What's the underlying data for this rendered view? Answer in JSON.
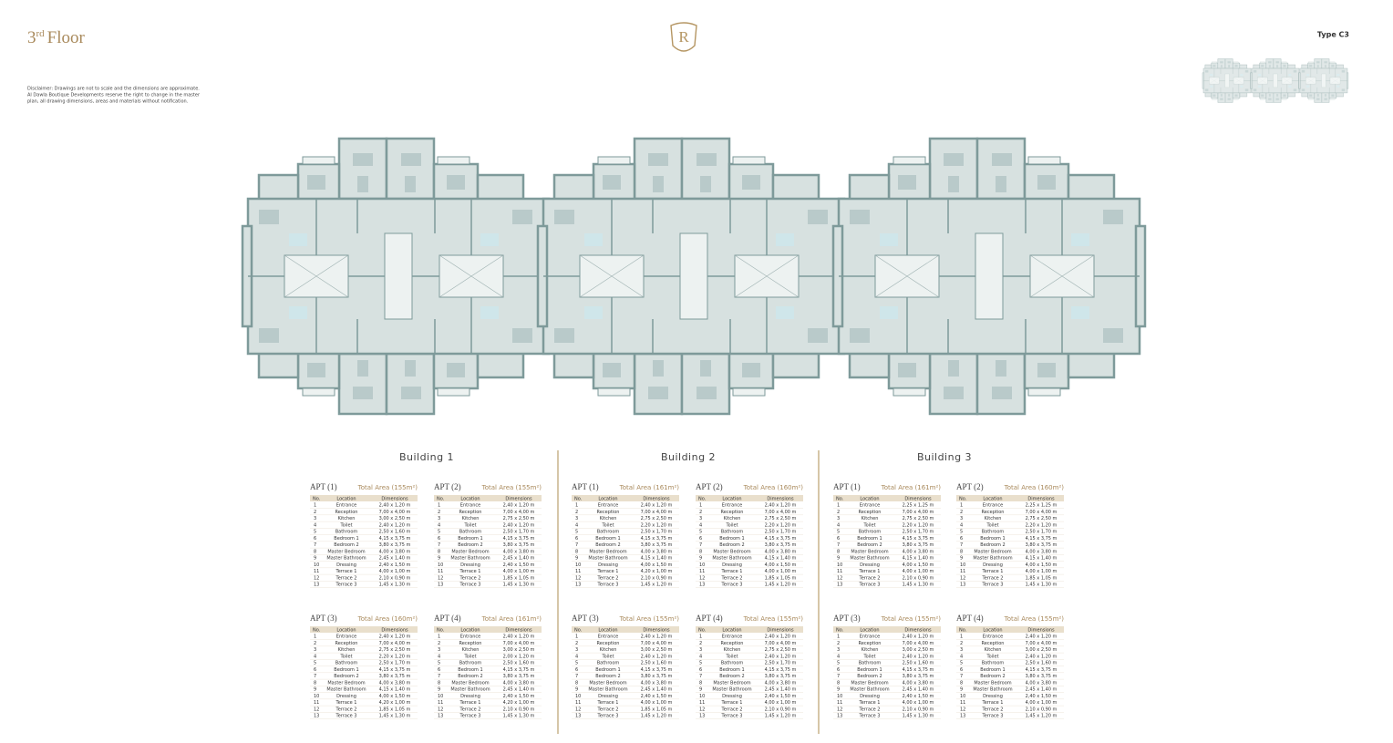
{
  "header": {
    "title_number": "3",
    "title_suffix": "rd",
    "title_word": "Floor",
    "logo": "R",
    "type": "Type C3",
    "disclaimer": [
      "Disclaimer: Drawings are not to scale and the dimensions are approximate.",
      "Al Dawla Boutique Developments reserve the right to change in the master",
      "plan, all drawing dimensions, areas and materials without notification."
    ]
  },
  "table_columns": [
    "No.",
    "Location",
    "Dimensions"
  ],
  "buildings": [
    {
      "title": "Building 1",
      "apartments": [
        {
          "label": "APT (1)",
          "area": "Total Area (155m²)",
          "rows": [
            [
              "1",
              "Entrance",
              "2,40 x 1,20 m"
            ],
            [
              "2",
              "Reception",
              "7,00 x 4,00 m"
            ],
            [
              "3",
              "Kitchen",
              "3,00 x 2,50 m"
            ],
            [
              "4",
              "Toilet",
              "2,40 x 1,20 m"
            ],
            [
              "5",
              "Bathroom",
              "2,50 x 1,60 m"
            ],
            [
              "6",
              "Bedroom 1",
              "4,15 x 3,75 m"
            ],
            [
              "7",
              "Bedroom 2",
              "3,80 x 3,75 m"
            ],
            [
              "8",
              "Master Bedroom",
              "4,00 x 3,80 m"
            ],
            [
              "9",
              "Master Bathroom",
              "2,45 x 1,40 m"
            ],
            [
              "10",
              "Dressing",
              "2,40 x 1,50 m"
            ],
            [
              "11",
              "Terrace 1",
              "4,00 x 1,00 m"
            ],
            [
              "12",
              "Terrace 2",
              "2,10 x 0,90 m"
            ],
            [
              "13",
              "Terrace 3",
              "1,45 x 1,30 m"
            ]
          ]
        },
        {
          "label": "APT (2)",
          "area": "Total Area (155m²)",
          "rows": [
            [
              "1",
              "Entrance",
              "2,40 x 1,20 m"
            ],
            [
              "2",
              "Reception",
              "7,00 x 4,00 m"
            ],
            [
              "3",
              "Kitchen",
              "2,75 x 2,50 m"
            ],
            [
              "4",
              "Toilet",
              "2,40 x 1,20 m"
            ],
            [
              "5",
              "Bathroom",
              "2,50 x 1,70 m"
            ],
            [
              "6",
              "Bedroom 1",
              "4,15 x 3,75 m"
            ],
            [
              "7",
              "Bedroom 2",
              "3,80 x 3,75 m"
            ],
            [
              "8",
              "Master Bedroom",
              "4,00 x 3,80 m"
            ],
            [
              "9",
              "Master Bathroom",
              "2,45 x 1,40 m"
            ],
            [
              "10",
              "Dressing",
              "2,40 x 1,50 m"
            ],
            [
              "11",
              "Terrace 1",
              "4,00 x 1,00 m"
            ],
            [
              "12",
              "Terrace 2",
              "1,85 x 1,05 m"
            ],
            [
              "13",
              "Terrace 3",
              "1,45 x 1,30 m"
            ]
          ]
        },
        {
          "label": "APT (3)",
          "area": "Total Area (160m²)",
          "rows": [
            [
              "1",
              "Entrance",
              "2,40 x 1,20 m"
            ],
            [
              "2",
              "Reception",
              "7,00 x 4,00 m"
            ],
            [
              "3",
              "Kitchen",
              "2,75 x 2,50 m"
            ],
            [
              "4",
              "Toilet",
              "2,20 x 1,20 m"
            ],
            [
              "5",
              "Bathroom",
              "2,50 x 1,70 m"
            ],
            [
              "6",
              "Bedroom 1",
              "4,15 x 3,75 m"
            ],
            [
              "7",
              "Bedroom 2",
              "3,80 x 3,75 m"
            ],
            [
              "8",
              "Master Bedroom",
              "4,00 x 3,80 m"
            ],
            [
              "9",
              "Master Bathroom",
              "4,15 x 1,40 m"
            ],
            [
              "10",
              "Dressing",
              "4,00 x 1,50 m"
            ],
            [
              "11",
              "Terrace 1",
              "4,20 x 1,00 m"
            ],
            [
              "12",
              "Terrace 2",
              "1,85 x 1,05 m"
            ],
            [
              "13",
              "Terrace 3",
              "1,45 x 1,30 m"
            ]
          ]
        },
        {
          "label": "APT (4)",
          "area": "Total Area (161m²)",
          "rows": [
            [
              "1",
              "Entrance",
              "2,40 x 1,20 m"
            ],
            [
              "2",
              "Reception",
              "7,00 x 4,00 m"
            ],
            [
              "3",
              "Kitchen",
              "3,00 x 2,50 m"
            ],
            [
              "4",
              "Toilet",
              "2,00 x 1,20 m"
            ],
            [
              "5",
              "Bathroom",
              "2,50 x 1,60 m"
            ],
            [
              "6",
              "Bedroom 1",
              "4,15 x 3,75 m"
            ],
            [
              "7",
              "Bedroom 2",
              "3,80 x 3,75 m"
            ],
            [
              "8",
              "Master Bedroom",
              "4,00 x 3,80 m"
            ],
            [
              "9",
              "Master Bathroom",
              "2,45 x 1,40 m"
            ],
            [
              "10",
              "Dressing",
              "2,40 x 1,50 m"
            ],
            [
              "11",
              "Terrace 1",
              "4,20 x 1,00 m"
            ],
            [
              "12",
              "Terrace 2",
              "2,10 x 0,90 m"
            ],
            [
              "13",
              "Terrace 3",
              "1,45 x 1,30 m"
            ]
          ]
        }
      ]
    },
    {
      "title": "Building 2",
      "apartments": [
        {
          "label": "APT (1)",
          "area": "Total Area (161m²)",
          "rows": [
            [
              "1",
              "Entrance",
              "2,40 x 1,20 m"
            ],
            [
              "2",
              "Reception",
              "7,00 x 4,00 m"
            ],
            [
              "3",
              "Kitchen",
              "2,75 x 2,50 m"
            ],
            [
              "4",
              "Toilet",
              "2,20 x 1,20 m"
            ],
            [
              "5",
              "Bathroom",
              "2,50 x 1,70 m"
            ],
            [
              "6",
              "Bedroom 1",
              "4,15 x 3,75 m"
            ],
            [
              "7",
              "Bedroom 2",
              "3,80 x 3,75 m"
            ],
            [
              "8",
              "Master Bedroom",
              "4,00 x 3,80 m"
            ],
            [
              "9",
              "Master Bathroom",
              "4,15 x 1,40 m"
            ],
            [
              "10",
              "Dressing",
              "4,00 x 1,50 m"
            ],
            [
              "11",
              "Terrace 1",
              "4,20 x 1,00 m"
            ],
            [
              "12",
              "Terrace 2",
              "2,10 x 0,90 m"
            ],
            [
              "13",
              "Terrace 3",
              "1,45 x 1,20 m"
            ]
          ]
        },
        {
          "label": "APT (2)",
          "area": "Total Area (160m²)",
          "rows": [
            [
              "1",
              "Entrance",
              "2,40 x 1,20 m"
            ],
            [
              "2",
              "Reception",
              "7,00 x 4,00 m"
            ],
            [
              "3",
              "Kitchen",
              "2,75 x 2,50 m"
            ],
            [
              "4",
              "Toilet",
              "2,20 x 1,20 m"
            ],
            [
              "5",
              "Bathroom",
              "2,50 x 1,70 m"
            ],
            [
              "6",
              "Bedroom 1",
              "4,15 x 3,75 m"
            ],
            [
              "7",
              "Bedroom 2",
              "3,80 x 3,75 m"
            ],
            [
              "8",
              "Master Bedroom",
              "4,00 x 3,80 m"
            ],
            [
              "9",
              "Master Bathroom",
              "4,15 x 1,40 m"
            ],
            [
              "10",
              "Dressing",
              "4,00 x 1,50 m"
            ],
            [
              "11",
              "Terrace 1",
              "4,00 x 1,00 m"
            ],
            [
              "12",
              "Terrace 2",
              "1,85 x 1,05 m"
            ],
            [
              "13",
              "Terrace 3",
              "1,45 x 1,20 m"
            ]
          ]
        },
        {
          "label": "APT (3)",
          "area": "Total Area (155m²)",
          "rows": [
            [
              "1",
              "Entrance",
              "2,40 x 1,20 m"
            ],
            [
              "2",
              "Reception",
              "7,00 x 4,00 m"
            ],
            [
              "3",
              "Kitchen",
              "3,00 x 2,50 m"
            ],
            [
              "4",
              "Toilet",
              "2,40 x 1,20 m"
            ],
            [
              "5",
              "Bathroom",
              "2,50 x 1,60 m"
            ],
            [
              "6",
              "Bedroom 1",
              "4,15 x 3,75 m"
            ],
            [
              "7",
              "Bedroom 2",
              "3,80 x 3,75 m"
            ],
            [
              "8",
              "Master Bedroom",
              "4,00 x 3,80 m"
            ],
            [
              "9",
              "Master Bathroom",
              "2,45 x 1,40 m"
            ],
            [
              "10",
              "Dressing",
              "2,40 x 1,50 m"
            ],
            [
              "11",
              "Terrace 1",
              "4,00 x 1,00 m"
            ],
            [
              "12",
              "Terrace 2",
              "1,85 x 1,05 m"
            ],
            [
              "13",
              "Terrace 3",
              "1,45 x 1,20 m"
            ]
          ]
        },
        {
          "label": "APT (4)",
          "area": "Total Area (155m²)",
          "rows": [
            [
              "1",
              "Entrance",
              "2,40 x 1,20 m"
            ],
            [
              "2",
              "Reception",
              "7,00 x 4,00 m"
            ],
            [
              "3",
              "Kitchen",
              "2,75 x 2,50 m"
            ],
            [
              "4",
              "Toilet",
              "2,40 x 1,20 m"
            ],
            [
              "5",
              "Bathroom",
              "2,50 x 1,70 m"
            ],
            [
              "6",
              "Bedroom 1",
              "4,15 x 3,75 m"
            ],
            [
              "7",
              "Bedroom 2",
              "3,80 x 3,75 m"
            ],
            [
              "8",
              "Master Bedroom",
              "4,00 x 3,80 m"
            ],
            [
              "9",
              "Master Bathroom",
              "2,45 x 1,40 m"
            ],
            [
              "10",
              "Dressing",
              "2,40 x 1,50 m"
            ],
            [
              "11",
              "Terrace 1",
              "4,00 x 1,00 m"
            ],
            [
              "12",
              "Terrace 2",
              "2,10 x 0,90 m"
            ],
            [
              "13",
              "Terrace 3",
              "1,45 x 1,20 m"
            ]
          ]
        }
      ]
    },
    {
      "title": "Building 3",
      "apartments": [
        {
          "label": "APT (1)",
          "area": "Total Area (161m²)",
          "rows": [
            [
              "1",
              "Entrance",
              "2,25 x 1,25 m"
            ],
            [
              "2",
              "Reception",
              "7,00 x 4,00 m"
            ],
            [
              "3",
              "Kitchen",
              "2,75 x 2,50 m"
            ],
            [
              "4",
              "Toilet",
              "2,20 x 1,20 m"
            ],
            [
              "5",
              "Bathroom",
              "2,50 x 1,70 m"
            ],
            [
              "6",
              "Bedroom 1",
              "4,15 x 3,75 m"
            ],
            [
              "7",
              "Bedroom 2",
              "3,80 x 3,75 m"
            ],
            [
              "8",
              "Master Bedroom",
              "4,00 x 3,80 m"
            ],
            [
              "9",
              "Master Bathroom",
              "4,15 x 1,40 m"
            ],
            [
              "10",
              "Dressing",
              "4,00 x 1,50 m"
            ],
            [
              "11",
              "Terrace 1",
              "4,00 x 1,00 m"
            ],
            [
              "12",
              "Terrace 2",
              "2,10 x 0,90 m"
            ],
            [
              "13",
              "Terrace 3",
              "1,45 x 1,30 m"
            ]
          ]
        },
        {
          "label": "APT (2)",
          "area": "Total Area (160m²)",
          "rows": [
            [
              "1",
              "Entrance",
              "2,25 x 1,25 m"
            ],
            [
              "2",
              "Reception",
              "7,00 x 4,00 m"
            ],
            [
              "3",
              "Kitchen",
              "2,75 x 2,50 m"
            ],
            [
              "4",
              "Toilet",
              "2,20 x 1,20 m"
            ],
            [
              "5",
              "Bathroom",
              "2,50 x 1,70 m"
            ],
            [
              "6",
              "Bedroom 1",
              "4,15 x 3,75 m"
            ],
            [
              "7",
              "Bedroom 2",
              "3,80 x 3,75 m"
            ],
            [
              "8",
              "Master Bedroom",
              "4,00 x 3,80 m"
            ],
            [
              "9",
              "Master Bathroom",
              "4,15 x 1,40 m"
            ],
            [
              "10",
              "Dressing",
              "4,00 x 1,50 m"
            ],
            [
              "11",
              "Terrace 1",
              "4,00 x 1,00 m"
            ],
            [
              "12",
              "Terrace 2",
              "1,85 x 1,05 m"
            ],
            [
              "13",
              "Terrace 3",
              "1,45 x 1,30 m"
            ]
          ]
        },
        {
          "label": "APT (3)",
          "area": "Total Area (155m²)",
          "rows": [
            [
              "1",
              "Entrance",
              "2,40 x 1,20 m"
            ],
            [
              "2",
              "Reception",
              "7,00 x 4,00 m"
            ],
            [
              "3",
              "Kitchen",
              "3,00 x 2,50 m"
            ],
            [
              "4",
              "Toilet",
              "2,40 x 1,20 m"
            ],
            [
              "5",
              "Bathroom",
              "2,50 x 1,60 m"
            ],
            [
              "6",
              "Bedroom 1",
              "4,15 x 3,75 m"
            ],
            [
              "7",
              "Bedroom 2",
              "3,80 x 3,75 m"
            ],
            [
              "8",
              "Master Bedroom",
              "4,00 x 3,80 m"
            ],
            [
              "9",
              "Master Bathroom",
              "2,45 x 1,40 m"
            ],
            [
              "10",
              "Dressing",
              "2,40 x 1,50 m"
            ],
            [
              "11",
              "Terrace 1",
              "4,00 x 1,00 m"
            ],
            [
              "12",
              "Terrace 2",
              "2,10 x 0,90 m"
            ],
            [
              "13",
              "Terrace 3",
              "1,45 x 1,30 m"
            ]
          ]
        },
        {
          "label": "APT (4)",
          "area": "Total Area (155m²)",
          "rows": [
            [
              "1",
              "Entrance",
              "2,40 x 1,20 m"
            ],
            [
              "2",
              "Reception",
              "7,00 x 4,00 m"
            ],
            [
              "3",
              "Kitchen",
              "3,00 x 2,50 m"
            ],
            [
              "4",
              "Toilet",
              "2,40 x 1,20 m"
            ],
            [
              "5",
              "Bathroom",
              "2,50 x 1,60 m"
            ],
            [
              "6",
              "Bedroom 1",
              "4,15 x 3,75 m"
            ],
            [
              "7",
              "Bedroom 2",
              "3,80 x 3,75 m"
            ],
            [
              "8",
              "Master Bedroom",
              "4,00 x 3,80 m"
            ],
            [
              "9",
              "Master Bathroom",
              "2,45 x 1,40 m"
            ],
            [
              "10",
              "Dressing",
              "2,40 x 1,50 m"
            ],
            [
              "11",
              "Terrace 1",
              "4,00 x 1,00 m"
            ],
            [
              "12",
              "Terrace 2",
              "2,10 x 0,90 m"
            ],
            [
              "13",
              "Terrace 3",
              "1,45 x 1,20 m"
            ]
          ]
        }
      ]
    }
  ]
}
